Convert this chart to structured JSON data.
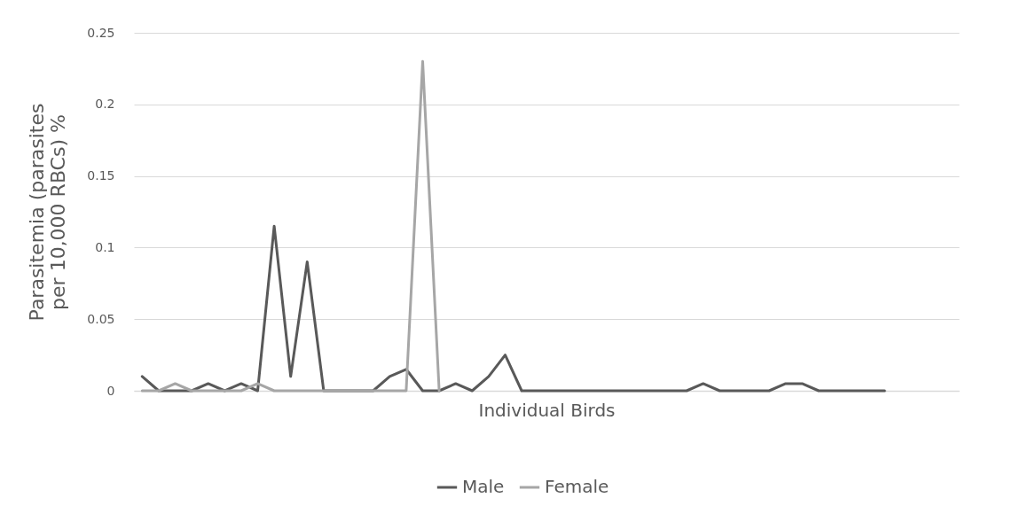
{
  "chart_data": {
    "type": "line",
    "xlabel": "Individual Birds",
    "ylabel": "Parasitemia (parasites per 10,000 RBCs) %",
    "categories": [
      null,
      null,
      null,
      null,
      null,
      null,
      null,
      null,
      null,
      null,
      null,
      null,
      null,
      null,
      null,
      null,
      null,
      null,
      null,
      null,
      null,
      null,
      null,
      null,
      null,
      null,
      null,
      null,
      null,
      null,
      null,
      null,
      null,
      null,
      null,
      null,
      null,
      null,
      null,
      null,
      null,
      null,
      null,
      null,
      null,
      null,
      null,
      null,
      null,
      null
    ],
    "series": [
      {
        "name": "Male",
        "color": "#595959",
        "values": [
          0.01,
          0,
          0,
          0,
          0.005,
          0,
          0.005,
          0,
          0.115,
          0.01,
          0.09,
          0,
          0,
          0,
          0,
          0.01,
          0.015,
          0,
          0,
          0.005,
          0,
          0.01,
          0.025,
          0,
          0,
          0,
          0,
          0,
          0,
          0,
          0,
          0,
          0,
          0,
          0.005,
          0,
          0,
          0,
          0,
          0.005,
          0.005,
          0,
          0,
          0,
          0,
          0,
          null,
          null,
          null,
          null
        ]
      },
      {
        "name": "Female",
        "color": "#a6a6a6",
        "values": [
          0,
          0,
          0.005,
          0,
          0,
          0,
          0,
          0.005,
          0,
          0,
          0,
          0,
          0,
          0,
          0,
          0,
          0,
          0.23,
          0,
          null,
          null,
          null,
          null,
          null,
          null,
          null,
          null,
          null,
          null,
          null,
          null,
          null,
          null,
          null,
          null,
          null,
          null,
          null,
          null,
          null,
          null,
          null,
          null,
          null,
          null,
          null,
          null,
          null,
          null,
          null
        ]
      }
    ],
    "ylim": [
      0,
      0.25
    ],
    "yticks": [
      0,
      0.05,
      0.1,
      0.15,
      0.2,
      0.25
    ],
    "grid": "y",
    "legend": "bottom",
    "marker": "none",
    "line_style": "solid"
  }
}
